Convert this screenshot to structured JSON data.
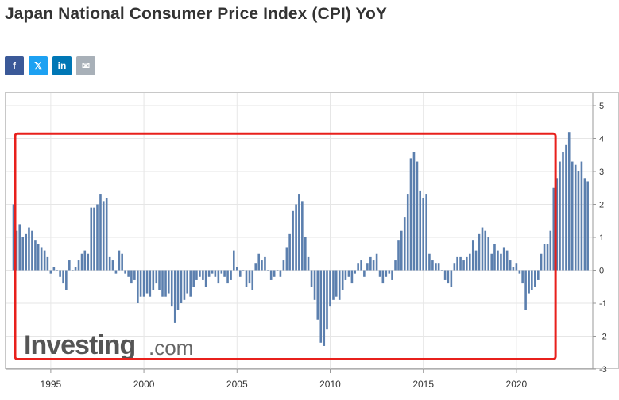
{
  "header": {
    "title": "Japan National Consumer Price Index (CPI) YoY"
  },
  "share": [
    {
      "name": "facebook-share-button",
      "icon": "facebook-icon",
      "glyph": "f",
      "color": "#3b5998"
    },
    {
      "name": "twitter-share-button",
      "icon": "x-icon",
      "glyph": "𝕏",
      "color": "#1da1f2"
    },
    {
      "name": "linkedin-share-button",
      "icon": "linkedin-icon",
      "glyph": "in",
      "color": "#0077b5"
    },
    {
      "name": "email-share-button",
      "icon": "envelope-icon",
      "glyph": "✉",
      "color": "#a8b0b8"
    }
  ],
  "colors": {
    "bar": "#5b7fae",
    "highlight": "#e8201c",
    "grid": "#e6e6e6",
    "axis_text": "#333333",
    "watermark": "#555555"
  },
  "watermark": {
    "brand": "Investing",
    "suffix": ".com"
  },
  "chart_data": {
    "type": "bar",
    "title": "Japan National Consumer Price Index (CPI) YoY",
    "xlabel": "",
    "ylabel": "",
    "x_range": [
      1993.0,
      2024.1
    ],
    "ylim": [
      -3,
      5
    ],
    "y_ticks": [
      5,
      4,
      3,
      2,
      1,
      0,
      -1,
      -2,
      -3
    ],
    "x_ticks": [
      1995,
      2000,
      2005,
      2010,
      2015,
      2020
    ],
    "x_tick_labels": [
      "1995",
      "2000",
      "2005",
      "2010",
      "2015",
      "2020"
    ],
    "grid": true,
    "y_axis_side": "right",
    "highlight_box": {
      "x_start": 1993.0,
      "x_end": 2022.1,
      "y_start": -2.7,
      "y_end": 4.15
    },
    "series": [
      {
        "name": "CPI YoY",
        "x": [
          1993.0,
          1993.17,
          1993.33,
          1993.5,
          1993.67,
          1993.83,
          1994.0,
          1994.17,
          1994.33,
          1994.5,
          1994.67,
          1994.83,
          1995.0,
          1995.17,
          1995.33,
          1995.5,
          1995.67,
          1995.83,
          1996.0,
          1996.17,
          1996.33,
          1996.5,
          1996.67,
          1996.83,
          1997.0,
          1997.17,
          1997.33,
          1997.5,
          1997.67,
          1997.83,
          1998.0,
          1998.17,
          1998.33,
          1998.5,
          1998.67,
          1998.83,
          1999.0,
          1999.17,
          1999.33,
          1999.5,
          1999.67,
          1999.83,
          2000.0,
          2000.17,
          2000.33,
          2000.5,
          2000.67,
          2000.83,
          2001.0,
          2001.17,
          2001.33,
          2001.5,
          2001.67,
          2001.83,
          2002.0,
          2002.17,
          2002.33,
          2002.5,
          2002.67,
          2002.83,
          2003.0,
          2003.17,
          2003.33,
          2003.5,
          2003.67,
          2003.83,
          2004.0,
          2004.17,
          2004.33,
          2004.5,
          2004.67,
          2004.83,
          2005.0,
          2005.17,
          2005.33,
          2005.5,
          2005.67,
          2005.83,
          2006.0,
          2006.17,
          2006.33,
          2006.5,
          2006.67,
          2006.83,
          2007.0,
          2007.17,
          2007.33,
          2007.5,
          2007.67,
          2007.83,
          2008.0,
          2008.17,
          2008.33,
          2008.5,
          2008.67,
          2008.83,
          2009.0,
          2009.17,
          2009.33,
          2009.5,
          2009.67,
          2009.83,
          2010.0,
          2010.17,
          2010.33,
          2010.5,
          2010.67,
          2010.83,
          2011.0,
          2011.17,
          2011.33,
          2011.5,
          2011.67,
          2011.83,
          2012.0,
          2012.17,
          2012.33,
          2012.5,
          2012.67,
          2012.83,
          2013.0,
          2013.17,
          2013.33,
          2013.5,
          2013.67,
          2013.83,
          2014.0,
          2014.17,
          2014.33,
          2014.5,
          2014.67,
          2014.83,
          2015.0,
          2015.17,
          2015.33,
          2015.5,
          2015.67,
          2015.83,
          2016.0,
          2016.17,
          2016.33,
          2016.5,
          2016.67,
          2016.83,
          2017.0,
          2017.17,
          2017.33,
          2017.5,
          2017.67,
          2017.83,
          2018.0,
          2018.17,
          2018.33,
          2018.5,
          2018.67,
          2018.83,
          2019.0,
          2019.17,
          2019.33,
          2019.5,
          2019.67,
          2019.83,
          2020.0,
          2020.17,
          2020.33,
          2020.5,
          2020.67,
          2020.83,
          2021.0,
          2021.17,
          2021.33,
          2021.5,
          2021.67,
          2021.83,
          2022.0,
          2022.17,
          2022.33,
          2022.5,
          2022.67,
          2022.83,
          2023.0,
          2023.17,
          2023.33,
          2023.5,
          2023.67,
          2023.83
        ],
        "values": [
          2.0,
          1.2,
          1.4,
          1.0,
          1.1,
          1.3,
          1.2,
          0.9,
          0.8,
          0.7,
          0.6,
          0.4,
          -0.1,
          0.1,
          0.0,
          -0.2,
          -0.4,
          -0.6,
          0.3,
          0.0,
          0.1,
          0.3,
          0.5,
          0.6,
          0.5,
          1.9,
          1.9,
          2.0,
          2.3,
          2.1,
          2.2,
          0.4,
          0.3,
          -0.1,
          0.6,
          0.5,
          -0.1,
          -0.2,
          -0.4,
          -0.3,
          -1.0,
          -0.8,
          -0.8,
          -0.7,
          -0.8,
          -0.6,
          -0.4,
          -0.6,
          -0.8,
          -0.8,
          -0.7,
          -1.1,
          -1.6,
          -1.2,
          -1.0,
          -0.9,
          -0.7,
          -0.8,
          -0.5,
          -0.3,
          -0.2,
          -0.3,
          -0.5,
          -0.2,
          -0.1,
          -0.2,
          -0.4,
          -0.1,
          -0.2,
          -0.4,
          -0.3,
          0.6,
          0.1,
          -0.2,
          0.0,
          -0.5,
          -0.4,
          -0.6,
          0.2,
          0.5,
          0.3,
          0.4,
          0.0,
          -0.3,
          -0.2,
          0.0,
          -0.2,
          0.3,
          0.7,
          1.1,
          1.8,
          2.0,
          2.3,
          2.1,
          1.0,
          0.4,
          -0.5,
          -0.9,
          -1.5,
          -2.2,
          -2.3,
          -1.8,
          -1.1,
          -0.9,
          -0.8,
          -0.9,
          -0.6,
          -0.3,
          -0.2,
          -0.4,
          -0.1,
          0.2,
          0.3,
          -0.2,
          0.2,
          0.4,
          0.3,
          0.5,
          -0.2,
          -0.4,
          -0.2,
          -0.1,
          -0.3,
          0.3,
          0.9,
          1.2,
          1.6,
          2.3,
          3.4,
          3.6,
          3.3,
          2.4,
          2.2,
          2.3,
          0.5,
          0.3,
          0.2,
          0.2,
          0.0,
          -0.3,
          -0.4,
          -0.5,
          0.2,
          0.4,
          0.4,
          0.3,
          0.4,
          0.5,
          0.9,
          0.6,
          1.1,
          1.3,
          1.2,
          1.0,
          0.5,
          0.8,
          0.6,
          0.5,
          0.7,
          0.6,
          0.3,
          0.1,
          0.2,
          -0.1,
          -0.4,
          -1.2,
          -0.7,
          -0.6,
          -0.5,
          -0.3,
          0.5,
          0.8,
          0.8,
          1.2,
          2.5,
          2.8,
          3.3,
          3.6,
          3.8,
          4.2,
          3.3,
          3.2,
          3.0,
          3.3,
          2.8,
          2.7
        ]
      }
    ]
  }
}
